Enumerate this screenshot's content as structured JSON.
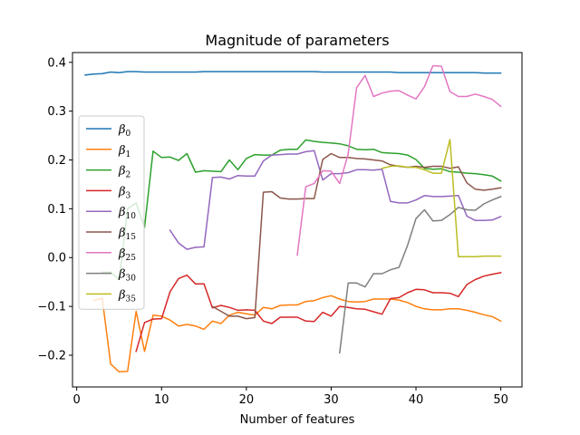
{
  "chart_data": {
    "type": "line",
    "title": "Magnitude of parameters",
    "xlabel": "Number of features",
    "ylabel": "",
    "xlim": [
      -0.5,
      52.5
    ],
    "ylim": [
      -0.265,
      0.42
    ],
    "xticks": [
      0,
      10,
      20,
      30,
      40,
      50
    ],
    "yticks": [
      -0.2,
      -0.1,
      0.0,
      0.1,
      0.2,
      0.3,
      0.4
    ],
    "ytick_labels": [
      "−0.2",
      "−0.1",
      "0.0",
      "0.1",
      "0.2",
      "0.3",
      "0.4"
    ],
    "legend_position": "center-left",
    "grid": false,
    "series": [
      {
        "name": "β",
        "sub": "0",
        "color": "#1f77b4",
        "x": [
          1,
          2,
          3,
          4,
          5,
          6,
          7,
          8,
          9,
          10,
          11,
          12,
          13,
          14,
          15,
          16,
          17,
          18,
          19,
          20,
          21,
          22,
          23,
          24,
          25,
          26,
          27,
          28,
          29,
          30,
          31,
          32,
          33,
          34,
          35,
          36,
          37,
          38,
          39,
          40,
          41,
          42,
          43,
          44,
          45,
          46,
          47,
          48,
          49,
          50
        ],
        "y": [
          0.374,
          0.376,
          0.377,
          0.38,
          0.379,
          0.381,
          0.381,
          0.38,
          0.38,
          0.38,
          0.38,
          0.38,
          0.38,
          0.38,
          0.381,
          0.381,
          0.381,
          0.381,
          0.381,
          0.381,
          0.381,
          0.381,
          0.381,
          0.381,
          0.381,
          0.381,
          0.381,
          0.381,
          0.38,
          0.38,
          0.38,
          0.38,
          0.38,
          0.38,
          0.38,
          0.38,
          0.38,
          0.379,
          0.379,
          0.379,
          0.379,
          0.379,
          0.379,
          0.379,
          0.379,
          0.379,
          0.379,
          0.378,
          0.378,
          0.378
        ]
      },
      {
        "name": "β",
        "sub": "1",
        "color": "#ff7f0e",
        "x": [
          2,
          3,
          4,
          5,
          6,
          7,
          8,
          9,
          10,
          11,
          12,
          13,
          14,
          15,
          16,
          17,
          18,
          19,
          20,
          21,
          22,
          23,
          24,
          25,
          26,
          27,
          28,
          29,
          30,
          31,
          32,
          33,
          34,
          35,
          36,
          37,
          38,
          39,
          40,
          41,
          42,
          43,
          44,
          45,
          46,
          47,
          48,
          49,
          50
        ],
        "y": [
          -0.088,
          -0.083,
          -0.218,
          -0.234,
          -0.233,
          -0.11,
          -0.192,
          -0.118,
          -0.12,
          -0.128,
          -0.14,
          -0.137,
          -0.14,
          -0.147,
          -0.13,
          -0.135,
          -0.118,
          -0.112,
          -0.115,
          -0.118,
          -0.102,
          -0.105,
          -0.098,
          -0.097,
          -0.097,
          -0.09,
          -0.088,
          -0.082,
          -0.078,
          -0.085,
          -0.09,
          -0.091,
          -0.09,
          -0.085,
          -0.085,
          -0.085,
          -0.087,
          -0.092,
          -0.1,
          -0.105,
          -0.107,
          -0.107,
          -0.105,
          -0.105,
          -0.108,
          -0.112,
          -0.117,
          -0.121,
          -0.13
        ]
      },
      {
        "name": "β",
        "sub": "2",
        "color": "#2ca02c",
        "x": [
          3,
          4,
          5,
          6,
          7,
          8,
          9,
          10,
          11,
          12,
          13,
          14,
          15,
          16,
          17,
          18,
          19,
          20,
          21,
          22,
          23,
          24,
          25,
          26,
          27,
          28,
          29,
          30,
          31,
          32,
          33,
          34,
          35,
          36,
          37,
          38,
          39,
          40,
          41,
          42,
          43,
          44,
          45,
          46,
          47,
          48,
          49,
          50
        ],
        "y": [
          -0.03,
          -0.03,
          -0.045,
          0.1,
          0.112,
          0.062,
          0.218,
          0.205,
          0.206,
          0.199,
          0.213,
          0.175,
          0.178,
          0.177,
          0.176,
          0.2,
          0.18,
          0.203,
          0.211,
          0.21,
          0.21,
          0.22,
          0.222,
          0.222,
          0.241,
          0.238,
          0.236,
          0.235,
          0.233,
          0.229,
          0.222,
          0.221,
          0.222,
          0.215,
          0.214,
          0.213,
          0.21,
          0.201,
          0.183,
          0.181,
          0.182,
          0.176,
          0.175,
          0.173,
          0.172,
          0.17,
          0.167,
          0.157
        ]
      },
      {
        "name": "β",
        "sub": "3",
        "color": "#d62728",
        "x": [
          7,
          8,
          9,
          10,
          11,
          12,
          13,
          14,
          15,
          16,
          17,
          18,
          19,
          20,
          21,
          22,
          23,
          24,
          25,
          26,
          27,
          28,
          29,
          30,
          31,
          32,
          33,
          34,
          35,
          36,
          37,
          38,
          39,
          40,
          41,
          42,
          43,
          44,
          45,
          46,
          47,
          48,
          49,
          50
        ],
        "y": [
          -0.192,
          -0.133,
          -0.126,
          -0.125,
          -0.07,
          -0.043,
          -0.036,
          -0.054,
          -0.054,
          -0.103,
          -0.098,
          -0.102,
          -0.108,
          -0.107,
          -0.108,
          -0.13,
          -0.135,
          -0.122,
          -0.122,
          -0.122,
          -0.13,
          -0.131,
          -0.112,
          -0.12,
          -0.1,
          -0.102,
          -0.105,
          -0.106,
          -0.111,
          -0.116,
          -0.084,
          -0.082,
          -0.072,
          -0.065,
          -0.066,
          -0.072,
          -0.072,
          -0.073,
          -0.08,
          -0.055,
          -0.045,
          -0.038,
          -0.034,
          -0.031
        ]
      },
      {
        "name": "β",
        "sub": "10",
        "color": "#9467bd",
        "x": [
          11,
          12,
          13,
          14,
          15,
          16,
          17,
          18,
          19,
          20,
          21,
          22,
          23,
          24,
          25,
          26,
          27,
          28,
          29,
          30,
          31,
          32,
          33,
          34,
          35,
          36,
          37,
          38,
          39,
          40,
          41,
          42,
          43,
          44,
          45,
          46,
          47,
          48,
          49,
          50
        ],
        "y": [
          0.056,
          0.03,
          0.017,
          0.021,
          0.022,
          0.164,
          0.165,
          0.161,
          0.168,
          0.167,
          0.167,
          0.198,
          0.21,
          0.211,
          0.212,
          0.212,
          0.217,
          0.219,
          0.159,
          0.172,
          0.172,
          0.174,
          0.18,
          0.18,
          0.179,
          0.181,
          0.115,
          0.112,
          0.112,
          0.118,
          0.127,
          0.125,
          0.125,
          0.126,
          0.127,
          0.085,
          0.076,
          0.076,
          0.077,
          0.084
        ]
      },
      {
        "name": "β",
        "sub": "15",
        "color": "#8c564b",
        "x": [
          16,
          17,
          18,
          19,
          20,
          21,
          22,
          23,
          24,
          25,
          26,
          27,
          28,
          29,
          30,
          31,
          32,
          33,
          34,
          35,
          36,
          37,
          38,
          39,
          40,
          41,
          42,
          43,
          44,
          45,
          46,
          47,
          48,
          49,
          50
        ],
        "y": [
          -0.1,
          -0.11,
          -0.12,
          -0.12,
          -0.125,
          -0.123,
          0.134,
          0.135,
          0.122,
          0.12,
          0.12,
          0.121,
          0.121,
          0.201,
          0.213,
          0.205,
          0.205,
          0.203,
          0.202,
          0.2,
          0.198,
          0.19,
          0.187,
          0.185,
          0.187,
          0.185,
          0.187,
          0.187,
          0.183,
          0.186,
          0.153,
          0.14,
          0.138,
          0.14,
          0.143
        ]
      },
      {
        "name": "β",
        "sub": "25",
        "color": "#e377c2",
        "x": [
          26,
          27,
          28,
          29,
          30,
          31,
          32,
          33,
          34,
          35,
          36,
          37,
          38,
          39,
          40,
          41,
          42,
          43,
          44,
          45,
          46,
          47,
          48,
          49,
          50
        ],
        "y": [
          0.005,
          0.145,
          0.152,
          0.178,
          0.177,
          0.152,
          0.212,
          0.348,
          0.373,
          0.33,
          0.337,
          0.341,
          0.342,
          0.333,
          0.325,
          0.35,
          0.393,
          0.392,
          0.34,
          0.33,
          0.33,
          0.335,
          0.33,
          0.324,
          0.31
        ]
      },
      {
        "name": "β",
        "sub": "30",
        "color": "#7f7f7f",
        "x": [
          31,
          32,
          33,
          34,
          35,
          36,
          37,
          38,
          39,
          40,
          41,
          42,
          43,
          44,
          45,
          46,
          47,
          48,
          49,
          50
        ],
        "y": [
          -0.195,
          -0.052,
          -0.052,
          -0.06,
          -0.033,
          -0.033,
          -0.025,
          -0.02,
          0.025,
          0.08,
          0.098,
          0.075,
          0.076,
          0.088,
          0.103,
          0.098,
          0.097,
          0.11,
          0.118,
          0.125
        ]
      },
      {
        "name": "β",
        "sub": "35",
        "color": "#bcbd22",
        "x": [
          36,
          37,
          38,
          39,
          40,
          41,
          42,
          43,
          44,
          45,
          46,
          47,
          48,
          49,
          50
        ],
        "y": [
          0.183,
          0.187,
          0.188,
          0.185,
          0.185,
          0.18,
          0.173,
          0.173,
          0.242,
          0.002,
          0.002,
          0.002,
          0.003,
          0.003,
          0.003
        ]
      }
    ]
  }
}
